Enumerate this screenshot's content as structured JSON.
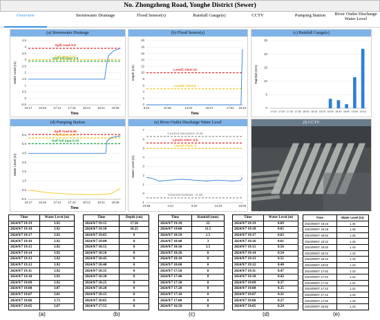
{
  "header": {
    "title": "No. Zhongzheng Road, Yonghe District (Sewer)"
  },
  "tabs": [
    "Overview",
    "Stormwater Drainage",
    "Flood Sensor(s)",
    "Rainfall Gauge(s)",
    "CCTV",
    "Pumping Station",
    "River Outlet Discharge Water Level"
  ],
  "panels": [
    {
      "title": "(a) Stormwater Drainage",
      "chart": {
        "type": "line",
        "ylabel": "Water Level (m)",
        "xlabel": "Time",
        "ylim": [
          -0.5,
          4.5
        ],
        "yticks": [
          -0.5,
          0,
          0.5,
          1,
          1.5,
          2,
          2.5,
          3,
          3.5,
          4,
          4.5
        ],
        "xlim": [
          "16:17",
          "19:20"
        ],
        "xticks": [
          "16:17",
          "16:45",
          "17:14",
          "17:43",
          "18:12",
          "18:41",
          "19:09"
        ],
        "thresholds": [
          {
            "label": "Spill road:3.9",
            "value": 3.9,
            "color": "#e8262a"
          },
          {
            "label": "Full pipe:3.02",
            "value": 3.02,
            "color": "#f2c618"
          },
          {
            "label": "Half full pipe:2.9",
            "value": 2.9,
            "color": "#2aa84a"
          }
        ],
        "series": [
          {
            "color": "#2f7fd6",
            "x": [
              "16:17",
              "18:48",
              "18:50",
              "18:55",
              "19:05",
              "19:19"
            ],
            "values": [
              1.5,
              1.5,
              2.2,
              3.3,
              3.7,
              3.92
            ]
          }
        ]
      }
    },
    {
      "title": "(b) Flood Sensor(s)",
      "chart": {
        "type": "line",
        "ylabel": "Depth (cm)",
        "xlabel": "Time",
        "ylim": [
          0,
          20
        ],
        "yticks": [
          0,
          2,
          4,
          6,
          8,
          10,
          12,
          14,
          16,
          18,
          20
        ],
        "xlim": [
          "8:15",
          "19:20"
        ],
        "xticks": [
          "8:15",
          "10:39",
          "13:03",
          "15:27",
          "17:51",
          "19:15"
        ],
        "thresholds": [
          {
            "label": "Level1 Alert:10",
            "value": 10,
            "color": "#e8262a"
          },
          {
            "label": "Level2 Alert:5",
            "value": 5,
            "color": "#f2c618"
          }
        ],
        "series": [
          {
            "color": "#2f7fd6",
            "x": [
              "8:15",
              "19:05",
              "19:10",
              "19:15"
            ],
            "values": [
              0,
              0,
              10.25,
              17.36
            ]
          }
        ]
      }
    },
    {
      "title": "(c) Rainfall Gauge(s)",
      "chart": {
        "type": "bar",
        "ylabel": "Rainfall (mm)",
        "ylim": [
          0,
          25
        ],
        "yticks": [
          0,
          5,
          10,
          15,
          20,
          25
        ],
        "color": "#2f7fd6",
        "categories": [
          "17:20",
          "17:30",
          "17:40",
          "17:50",
          "18:00",
          "18:10",
          "18:20",
          "18:30",
          "18:40",
          "18:50",
          "19:00",
          "19:10"
        ],
        "values": [
          0,
          0,
          0,
          0,
          0,
          0,
          0,
          3.5,
          3,
          1.5,
          11.5,
          22
        ]
      }
    },
    {
      "title": "(d) Pumping Station",
      "chart": {
        "type": "line",
        "ylabel": "Water Level (m)",
        "xlabel": "Time",
        "ylim": [
          -0.5,
          7
        ],
        "yticks": [
          -0.5,
          0.5,
          1.5,
          2.5,
          3.5,
          4.5,
          5.5,
          6.5
        ],
        "xlim": [
          "16:17",
          "19:20"
        ],
        "xticks": [
          "16:17",
          "16:45",
          "17:14",
          "17:43",
          "18:12",
          "18:41",
          "19:09"
        ],
        "thresholds": [
          {
            "label": "Spill road:6.55",
            "value": 6.55,
            "color": "#e8262a"
          },
          {
            "label": "Full pipe:6.17",
            "value": 6.17,
            "color": "#f2c618"
          },
          {
            "label": "Half full pipe:5.55",
            "value": 5.55,
            "color": "#2aa84a"
          }
        ],
        "series": [
          {
            "color": "#2f7fd6",
            "x": [
              "16:17",
              "18:50",
              "18:52",
              "19:00",
              "19:19"
            ],
            "values": [
              4.5,
              4.5,
              5.8,
              6.2,
              6.4
            ]
          },
          {
            "color": "#f2c618",
            "x": [
              "16:17",
              "17:00",
              "17:43",
              "18:30",
              "19:00",
              "19:19"
            ],
            "values": [
              0.5,
              0.2,
              0.05,
              0,
              0.1,
              0.69
            ]
          }
        ]
      }
    },
    {
      "title": "(e) River Outlet Discharge Water Level",
      "chart": {
        "type": "line",
        "ylabel": "Water Level (m)",
        "ylim": [
          -1,
          7
        ],
        "yticks": [
          -1,
          0,
          1,
          2,
          3,
          4,
          5,
          6,
          7
        ],
        "xlim": [
          "23:56",
          "19:20"
        ],
        "xticks": [
          "23:56",
          "4:44",
          "9:32",
          "14:20",
          "19:08"
        ],
        "thresholds": [
          {
            "label": "Control elevation: 6.33",
            "value": 6.33,
            "color": "#9a9a9a"
          },
          {
            "label": "Level1 Alert: 5.6",
            "value": 5.6,
            "color": "#e8262a"
          },
          {
            "label": "Level2 Alert: 5",
            "value": 5,
            "color": "#f2c618"
          },
          {
            "label": "Channel bottom: -0.46",
            "value": -0.46,
            "color": "#9a9a9a"
          }
        ],
        "series": [
          {
            "color": "#2f7fd6",
            "x": [
              "23:56",
              "1:00",
              "2:30",
              "4:44",
              "7:00",
              "9:32",
              "12:00",
              "14:20",
              "17:00",
              "18:50",
              "19:08"
            ],
            "values": [
              1.8,
              1.7,
              1.4,
              1.5,
              1.6,
              1.5,
              1.4,
              1.5,
              1.4,
              1.46,
              1.8
            ]
          }
        ]
      }
    },
    {
      "title": "(f) CCTV"
    }
  ],
  "tables": [
    {
      "columns": [
        "Time",
        "Water Level (m)"
      ],
      "rows": [
        [
          "2024/9/7 19:19",
          "3.92"
        ],
        [
          "2024/9/7 19:18",
          "3.92"
        ],
        [
          "2024/9/7 19:17",
          "3.92"
        ],
        [
          "2024/9/7 19:16",
          "3.92"
        ],
        [
          "2024/9/7 19:15",
          "3.92"
        ],
        [
          "2024/9/7 19:14",
          "3.92"
        ],
        [
          "2024/9/7 19:13",
          "3.92"
        ],
        [
          "2024/9/7 19:12",
          "3.92"
        ],
        [
          "2024/9/7 19:11",
          "3.92"
        ],
        [
          "2024/9/7 19:10",
          "3.91"
        ],
        [
          "2024/9/7 19:09",
          "3.92"
        ],
        [
          "2024/9/7 19:08",
          "3.87"
        ],
        [
          "2024/9/7 19:07",
          "3.81"
        ],
        [
          "2024/9/7 19:06",
          "3.73"
        ],
        [
          "2024/9/7 19:05",
          "3.67"
        ]
      ]
    },
    {
      "columns": [
        "Time",
        "Depth (cm)"
      ],
      "rows": [
        [
          "2024/9/7 19:15",
          "17.36"
        ],
        [
          "2024/9/7 19:10",
          "10.25"
        ],
        [
          "2024/9/7 19:05",
          "0"
        ],
        [
          "2024/9/7 19:00",
          "0"
        ],
        [
          "2024/9/7 18:55",
          "0"
        ],
        [
          "2024/9/7 18:50",
          "0"
        ],
        [
          "2024/9/7 18:45",
          "0"
        ],
        [
          "2024/9/7 18:40",
          "0"
        ],
        [
          "2024/9/7 18:35",
          "0"
        ],
        [
          "2024/9/7 18:30",
          "0"
        ],
        [
          "2024/9/7 18:25",
          "0"
        ],
        [
          "2024/9/7 18:20",
          "0"
        ],
        [
          "2024/9/7 18:15",
          "0"
        ],
        [
          "2024/9/7 18:05",
          "0"
        ],
        [
          "2024/9/7 17:55",
          "0"
        ]
      ]
    },
    {
      "columns": [
        "Time",
        "Rainfall (mm)"
      ],
      "rows": [
        [
          "2024/9/7 19:10",
          "22"
        ],
        [
          "2024/9/7 19:00",
          "11.5"
        ],
        [
          "2024/9/7 18:50",
          "1.5"
        ],
        [
          "2024/9/7 18:40",
          "3"
        ],
        [
          "2024/9/7 18:30",
          "3.5"
        ],
        [
          "2024/9/7 18:20",
          "0"
        ],
        [
          "2024/9/7 18:10",
          "0"
        ],
        [
          "2024/9/7 18:00",
          "0"
        ],
        [
          "2024/9/7 17:50",
          "0"
        ],
        [
          "2024/9/7 17:40",
          "0"
        ],
        [
          "2024/9/7 17:30",
          "0"
        ],
        [
          "2024/9/7 17:20",
          "0"
        ],
        [
          "2024/9/7 17:10",
          "0"
        ],
        [
          "2024/9/7 17:00",
          "0"
        ],
        [
          "2024/9/7 16:50",
          "0"
        ]
      ]
    },
    {
      "columns": [
        "Time",
        "Water Level (m)"
      ],
      "rows": [
        [
          "2024/9/7 19:19",
          "0.69"
        ],
        [
          "2024/9/7 19:18",
          "0.65"
        ],
        [
          "2024/9/7 19:17",
          "0.63"
        ],
        [
          "2024/9/7 19:16",
          "0.61"
        ],
        [
          "2024/9/7 19:15",
          "0.56"
        ],
        [
          "2024/9/7 19:14",
          "0.54"
        ],
        [
          "2024/9/7 19:13",
          "0.51"
        ],
        [
          "2024/9/7 19:12",
          "0.48"
        ],
        [
          "2024/9/7 19:11",
          "0.47"
        ],
        [
          "2024/9/7 19:10",
          "0.42"
        ],
        [
          "2024/9/7 19:09",
          "0.37"
        ],
        [
          "2024/9/7 19:08",
          "0.35"
        ],
        [
          "2024/9/7 19:07",
          "0.31"
        ],
        [
          "2024/9/7 19:06",
          "0.27"
        ],
        [
          "2024/9/7 19:05",
          "0.24"
        ]
      ]
    },
    {
      "columns": [
        "Time",
        "Water Level (m)"
      ],
      "rows": [
        [
          "2024/09/07 19:23",
          "1.46"
        ],
        [
          "2024/09/07 19:18",
          "1.46"
        ],
        [
          "2024/09/07 18:52",
          "1.46"
        ],
        [
          "2024/09/07 18:42",
          "1.45"
        ],
        [
          "2024/09/07 18:32",
          "1.43"
        ],
        [
          "2024/09/07 18:22",
          "1.43"
        ],
        [
          "2024/09/07 18:12",
          "1.43"
        ],
        [
          "2024/09/07 18:02",
          "1.43"
        ],
        [
          "2024/09/07 17:52",
          "1.43"
        ],
        [
          "2024/09/07 17:42",
          "1.42"
        ],
        [
          "2024/09/07 17:32",
          "1.42"
        ],
        [
          "2024/09/07 17:22",
          "1.42"
        ],
        [
          "2024/09/07 17:12",
          "1.43"
        ],
        [
          "2024/09/07 17:02",
          "1.43"
        ],
        [
          "2024/09/07 16:52",
          "1.43"
        ]
      ]
    }
  ],
  "captions": [
    "(a)",
    "(b)",
    "(c)",
    "(d)",
    "(e)"
  ]
}
